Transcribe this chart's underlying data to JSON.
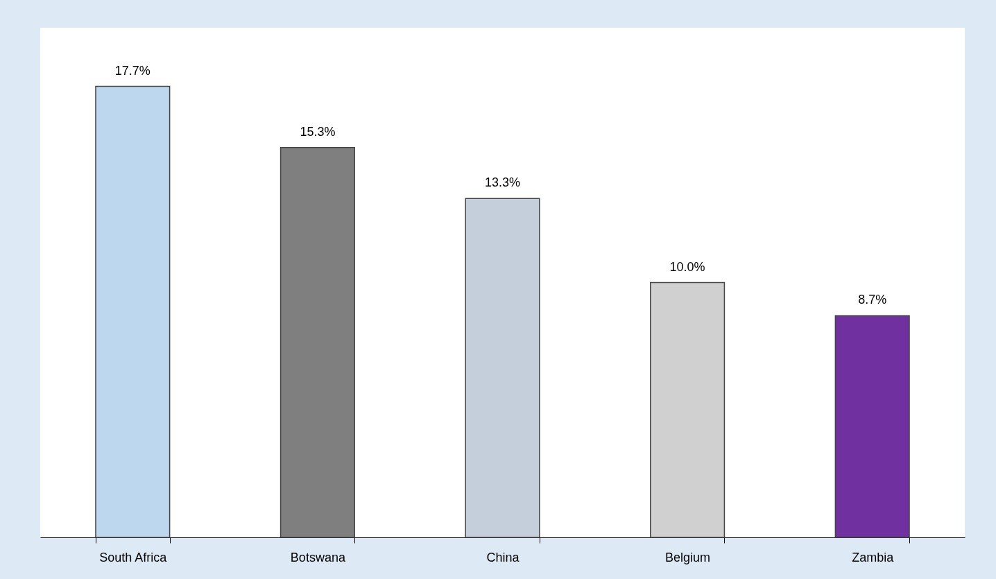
{
  "chart_data": {
    "type": "bar",
    "categories": [
      "South Africa",
      "Botswana",
      "China",
      "Belgium",
      "Zambia"
    ],
    "values": [
      17.7,
      15.3,
      13.3,
      10.0,
      8.7
    ],
    "value_labels": [
      "17.7%",
      "15.3%",
      "13.3%",
      "10.0%",
      "8.7%"
    ],
    "colors": [
      "#bdd7ee",
      "#7f7f7f",
      "#c5cedb",
      "#d0d0d0",
      "#7030a0"
    ]
  }
}
